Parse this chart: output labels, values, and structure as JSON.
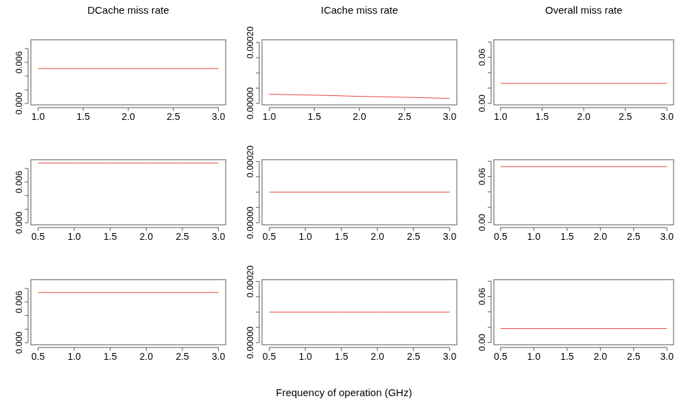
{
  "chart_data": [
    {
      "type": "line",
      "title": "DCache miss rate",
      "x": [
        1.0,
        1.5,
        2.0,
        2.5,
        3.0
      ],
      "series": [
        {
          "color": "#e8413a",
          "values": [
            0.0051,
            0.0051,
            0.0051,
            0.0051,
            0.0051
          ]
        }
      ],
      "xlim": [
        0.92,
        3.08
      ],
      "xticks": [
        {
          "value": 1.0,
          "label": "1.0"
        },
        {
          "value": 1.5,
          "label": "1.5"
        },
        {
          "value": 2.0,
          "label": "2.0"
        },
        {
          "value": 2.5,
          "label": "2.5"
        },
        {
          "value": 3.0,
          "label": "3.0"
        }
      ],
      "ylim": [
        -0.0002,
        0.0093
      ],
      "yticks": [
        {
          "value": 0,
          "label": "0.000"
        },
        {
          "value": 0.002,
          "label": null
        },
        {
          "value": 0.004,
          "label": null
        },
        {
          "value": 0.006,
          "label": "0.006"
        },
        {
          "value": 0.008,
          "label": null
        }
      ],
      "grid": false
    },
    {
      "type": "line",
      "title": "ICache miss rate",
      "x": [
        1.0,
        1.5,
        2.0,
        2.5,
        3.0
      ],
      "series": [
        {
          "color": "#e8413a",
          "values": [
            3e-05,
            2.7e-05,
            2.3e-05,
            2e-05,
            1.6e-05
          ]
        }
      ],
      "xlim": [
        0.92,
        3.08
      ],
      "xticks": [
        {
          "value": 1.0,
          "label": "1.0"
        },
        {
          "value": 1.5,
          "label": "1.5"
        },
        {
          "value": 2.0,
          "label": "2.0"
        },
        {
          "value": 2.5,
          "label": "2.5"
        },
        {
          "value": 3.0,
          "label": "3.0"
        }
      ],
      "ylim": [
        -5e-06,
        0.000209
      ],
      "yticks": [
        {
          "value": 0,
          "label": "0.00000"
        },
        {
          "value": 5e-05,
          "label": null
        },
        {
          "value": 0.0001,
          "label": null
        },
        {
          "value": 0.00015,
          "label": null
        },
        {
          "value": 0.0002,
          "label": "0.00020"
        }
      ],
      "grid": false
    },
    {
      "type": "line",
      "title": "Overall miss rate",
      "x": [
        1.0,
        1.5,
        2.0,
        2.5,
        3.0
      ],
      "series": [
        {
          "color": "#e8413a",
          "values": [
            0.026,
            0.026,
            0.026,
            0.026,
            0.026
          ]
        }
      ],
      "xlim": [
        0.92,
        3.08
      ],
      "xticks": [
        {
          "value": 1.0,
          "label": "1.0"
        },
        {
          "value": 1.5,
          "label": "1.5"
        },
        {
          "value": 2.0,
          "label": "2.0"
        },
        {
          "value": 2.5,
          "label": "2.5"
        },
        {
          "value": 3.0,
          "label": "3.0"
        }
      ],
      "ylim": [
        -0.002,
        0.083
      ],
      "yticks": [
        {
          "value": 0,
          "label": "0.00"
        },
        {
          "value": 0.02,
          "label": null
        },
        {
          "value": 0.04,
          "label": null
        },
        {
          "value": 0.06,
          "label": "0.06"
        },
        {
          "value": 0.08,
          "label": null
        }
      ],
      "grid": false
    },
    {
      "type": "line",
      "x": [
        0.5,
        1.0,
        1.5,
        2.0,
        2.5,
        3.0
      ],
      "series": [
        {
          "color": "#e8413a",
          "values": [
            0.0088,
            0.0088,
            0.0088,
            0.0088,
            0.0088,
            0.0088
          ]
        }
      ],
      "xlim": [
        0.4,
        3.1
      ],
      "xticks": [
        {
          "value": 0.5,
          "label": "0.5"
        },
        {
          "value": 1.0,
          "label": "1.0"
        },
        {
          "value": 1.5,
          "label": "1.5"
        },
        {
          "value": 2.0,
          "label": "2.0"
        },
        {
          "value": 2.5,
          "label": "2.5"
        },
        {
          "value": 3.0,
          "label": "3.0"
        }
      ],
      "ylim": [
        -0.0003,
        0.0093
      ],
      "yticks": [
        {
          "value": 0,
          "label": "0.000"
        },
        {
          "value": 0.002,
          "label": null
        },
        {
          "value": 0.004,
          "label": null
        },
        {
          "value": 0.006,
          "label": "0.006"
        },
        {
          "value": 0.008,
          "label": null
        }
      ],
      "grid": false
    },
    {
      "type": "line",
      "x": [
        0.5,
        1.0,
        1.5,
        2.0,
        2.5,
        3.0
      ],
      "series": [
        {
          "color": "#e8413a",
          "values": [
            0.0001,
            0.0001,
            0.0001,
            0.0001,
            0.0001,
            0.0001
          ]
        }
      ],
      "xlim": [
        0.4,
        3.1
      ],
      "xticks": [
        {
          "value": 0.5,
          "label": "0.5"
        },
        {
          "value": 1.0,
          "label": "1.0"
        },
        {
          "value": 1.5,
          "label": "1.5"
        },
        {
          "value": 2.0,
          "label": "2.0"
        },
        {
          "value": 2.5,
          "label": "2.5"
        },
        {
          "value": 3.0,
          "label": "3.0"
        }
      ],
      "ylim": [
        -7e-06,
        0.000206
      ],
      "yticks": [
        {
          "value": 0,
          "label": "0.00000"
        },
        {
          "value": 5e-05,
          "label": null
        },
        {
          "value": 0.0001,
          "label": null
        },
        {
          "value": 0.00015,
          "label": null
        },
        {
          "value": 0.0002,
          "label": "0.00020"
        }
      ],
      "grid": false
    },
    {
      "type": "line",
      "x": [
        0.5,
        1.0,
        1.5,
        2.0,
        2.5,
        3.0
      ],
      "series": [
        {
          "color": "#e8413a",
          "values": [
            0.073,
            0.073,
            0.073,
            0.073,
            0.073,
            0.073
          ]
        }
      ],
      "xlim": [
        0.4,
        3.1
      ],
      "xticks": [
        {
          "value": 0.5,
          "label": "0.5"
        },
        {
          "value": 1.0,
          "label": "1.0"
        },
        {
          "value": 1.5,
          "label": "1.5"
        },
        {
          "value": 2.0,
          "label": "2.0"
        },
        {
          "value": 2.5,
          "label": "2.5"
        },
        {
          "value": 3.0,
          "label": "3.0"
        }
      ],
      "ylim": [
        -0.003,
        0.082
      ],
      "yticks": [
        {
          "value": 0,
          "label": "0.00"
        },
        {
          "value": 0.02,
          "label": null
        },
        {
          "value": 0.04,
          "label": null
        },
        {
          "value": 0.06,
          "label": "0.06"
        },
        {
          "value": 0.08,
          "label": null
        }
      ],
      "grid": false
    },
    {
      "type": "line",
      "x": [
        0.5,
        1.0,
        1.5,
        2.0,
        2.5,
        3.0
      ],
      "series": [
        {
          "color": "#e8413a",
          "values": [
            0.0074,
            0.0074,
            0.0074,
            0.0074,
            0.0074,
            0.0074
          ]
        }
      ],
      "xlim": [
        0.4,
        3.1
      ],
      "xticks": [
        {
          "value": 0.5,
          "label": "0.5"
        },
        {
          "value": 1.0,
          "label": "1.0"
        },
        {
          "value": 1.5,
          "label": "1.5"
        },
        {
          "value": 2.0,
          "label": "2.0"
        },
        {
          "value": 2.5,
          "label": "2.5"
        },
        {
          "value": 3.0,
          "label": "3.0"
        }
      ],
      "ylim": [
        -0.0003,
        0.0093
      ],
      "yticks": [
        {
          "value": 0,
          "label": "0.000"
        },
        {
          "value": 0.002,
          "label": null
        },
        {
          "value": 0.004,
          "label": null
        },
        {
          "value": 0.006,
          "label": "0.006"
        },
        {
          "value": 0.008,
          "label": null
        }
      ],
      "grid": false
    },
    {
      "type": "line",
      "xlabel": "Frequency of operation (GHz)",
      "x": [
        0.5,
        1.0,
        1.5,
        2.0,
        2.5,
        3.0
      ],
      "series": [
        {
          "color": "#e8413a",
          "values": [
            0.0001,
            0.0001,
            0.0001,
            0.0001,
            0.0001,
            0.0001
          ]
        }
      ],
      "xlim": [
        0.4,
        3.1
      ],
      "xticks": [
        {
          "value": 0.5,
          "label": "0.5"
        },
        {
          "value": 1.0,
          "label": "1.0"
        },
        {
          "value": 1.5,
          "label": "1.5"
        },
        {
          "value": 2.0,
          "label": "2.0"
        },
        {
          "value": 2.5,
          "label": "2.5"
        },
        {
          "value": 3.0,
          "label": "3.0"
        }
      ],
      "ylim": [
        -7e-06,
        0.000206
      ],
      "yticks": [
        {
          "value": 0,
          "label": "0.00000"
        },
        {
          "value": 5e-05,
          "label": null
        },
        {
          "value": 0.0001,
          "label": null
        },
        {
          "value": 0.00015,
          "label": null
        },
        {
          "value": 0.0002,
          "label": "0.00020"
        }
      ],
      "grid": false
    },
    {
      "type": "line",
      "x": [
        0.5,
        1.0,
        1.5,
        2.0,
        2.5,
        3.0
      ],
      "series": [
        {
          "color": "#e8413a",
          "values": [
            0.018,
            0.018,
            0.018,
            0.018,
            0.018,
            0.018
          ]
        }
      ],
      "xlim": [
        0.4,
        3.1
      ],
      "xticks": [
        {
          "value": 0.5,
          "label": "0.5"
        },
        {
          "value": 1.0,
          "label": "1.0"
        },
        {
          "value": 1.5,
          "label": "1.5"
        },
        {
          "value": 2.0,
          "label": "2.0"
        },
        {
          "value": 2.5,
          "label": "2.5"
        },
        {
          "value": 3.0,
          "label": "3.0"
        }
      ],
      "ylim": [
        -0.003,
        0.082
      ],
      "yticks": [
        {
          "value": 0,
          "label": "0.00"
        },
        {
          "value": 0.02,
          "label": null
        },
        {
          "value": 0.04,
          "label": null
        },
        {
          "value": 0.06,
          "label": "0.06"
        },
        {
          "value": 0.08,
          "label": null
        }
      ],
      "grid": false
    }
  ]
}
